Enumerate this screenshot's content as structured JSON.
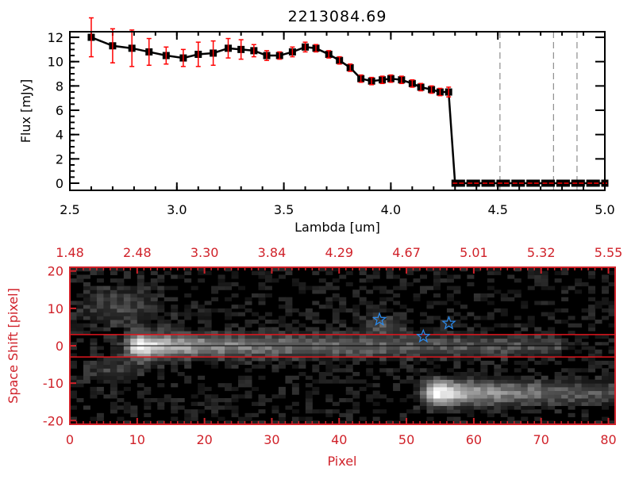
{
  "chart_data": [
    {
      "type": "line",
      "title": "2213084.69",
      "xlabel": "Lambda [um]",
      "ylabel": "Flux [mJy]",
      "xlim": [
        2.5,
        5.0
      ],
      "ylim": [
        0,
        12.4
      ],
      "xticks": [
        "2.5",
        "3.0",
        "3.5",
        "4.0",
        "4.5",
        "5.0"
      ],
      "yticks": [
        "0",
        "2",
        "4",
        "6",
        "8",
        "10",
        "12"
      ],
      "series": [
        {
          "name": "flux",
          "x": [
            2.6,
            2.7,
            2.79,
            2.87,
            2.95,
            3.03,
            3.1,
            3.17,
            3.24,
            3.3,
            3.36,
            3.42,
            3.48,
            3.54,
            3.6,
            3.65,
            3.71,
            3.76,
            3.81,
            3.86,
            3.91,
            3.96,
            4.0,
            4.05,
            4.1,
            4.14,
            4.19,
            4.23,
            4.27,
            4.3,
            4.33,
            4.37,
            4.4,
            4.44,
            4.47,
            4.51,
            4.54,
            4.58,
            4.61,
            4.65,
            4.68,
            4.72,
            4.75,
            4.79,
            4.82,
            4.86,
            4.89,
            4.93,
            4.96,
            5.0
          ],
          "y": [
            12.0,
            11.3,
            11.1,
            10.8,
            10.5,
            10.3,
            10.6,
            10.7,
            11.1,
            11.0,
            10.9,
            10.5,
            10.5,
            10.8,
            11.2,
            11.1,
            10.6,
            10.1,
            9.5,
            8.6,
            8.4,
            8.5,
            8.6,
            8.5,
            8.2,
            7.9,
            7.7,
            7.5,
            7.5,
            0,
            0,
            0,
            0,
            0,
            0,
            0,
            0,
            0,
            0,
            0,
            0,
            0,
            0,
            0,
            0,
            0,
            0,
            0,
            0,
            0
          ],
          "yerr": [
            1.6,
            1.4,
            1.5,
            1.1,
            0.7,
            0.7,
            1.0,
            1.0,
            0.8,
            0.8,
            0.5,
            0.4,
            0.3,
            0.4,
            0.4,
            0.3,
            0.3,
            0.3,
            0.3,
            0.3,
            0.3,
            0.3,
            0.3,
            0.3,
            0.3,
            0.3,
            0.3,
            0.3,
            0.4,
            0.1,
            0.1,
            0.1,
            0.1,
            0.1,
            0.1,
            0.1,
            0.1,
            0.1,
            0.1,
            0.1,
            0.1,
            0.1,
            0.1,
            0.1,
            0.1,
            0.1,
            0.1,
            0.1,
            0.1,
            0.1
          ]
        }
      ],
      "vlines": [
        4.51,
        4.76,
        4.87
      ]
    },
    {
      "type": "heatmap",
      "xlabel": "Pixel",
      "ylabel": "Space Shift [pixel]",
      "xlim": [
        0,
        81
      ],
      "ylim": [
        -21,
        21
      ],
      "xticks": [
        "0",
        "10",
        "20",
        "30",
        "40",
        "50",
        "60",
        "70",
        "80"
      ],
      "top_xticks": [
        "1.48",
        "2.48",
        "3.30",
        "3.84",
        "4.29",
        "4.67",
        "5.01",
        "5.32",
        "5.55"
      ],
      "yticks": [
        "20",
        "10",
        "0",
        "-10",
        "-20"
      ],
      "hlines": {
        "aperture": [
          3,
          -3
        ],
        "center": 0
      },
      "stars": [
        {
          "x": 46,
          "y": 7
        },
        {
          "x": 52.5,
          "y": 2.5
        },
        {
          "x": 56.3,
          "y": 6
        }
      ],
      "traces": [
        {
          "x_start": 7,
          "x_end": 72,
          "x_peak": 10,
          "center": 0,
          "peak": 1.0
        },
        {
          "x_start": 51,
          "x_end": 81,
          "x_peak": 54,
          "center": -12.5,
          "peak": 1.0
        }
      ],
      "colors": {
        "axis": "#d0222a",
        "star": "#2a8cf0",
        "errorbar": "#ff0000"
      }
    }
  ]
}
